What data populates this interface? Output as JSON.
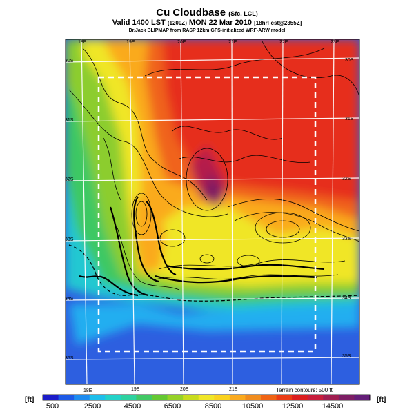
{
  "header": {
    "title": "Cu Cloudbase",
    "title_suffix": "(Sfc. LCL)",
    "valid": "Valid 1400 LST",
    "valid_code": "(1200Z)",
    "date": "MON 22 Mar 2010",
    "forecast": "[18hrFcst@2355Z]",
    "credit": "Dr.Jack BLIPMAP from RASP 12km GFS-initialized WRF-ARW model"
  },
  "map": {
    "lon_labels_top": [
      "18E",
      "19E",
      "20E",
      "21E",
      "22E",
      "23E"
    ],
    "lon_labels_bottom": [
      "18E",
      "19E",
      "20E",
      "21E"
    ],
    "lat_labels_left": [
      "30S",
      "31S",
      "32S",
      "33S",
      "34S",
      "35S"
    ],
    "lat_labels_right": [
      "30S",
      "31S",
      "32S",
      "33S",
      "34S",
      "35S"
    ],
    "terrain_note": "Terrain contours: 500 ft"
  },
  "legend": {
    "unit": "[ft]",
    "labels": [
      "500",
      "2500",
      "4500",
      "6500",
      "8500",
      "10500",
      "12500",
      "14500"
    ],
    "colors": [
      "#1c1cc8",
      "#1e5ae6",
      "#1e8cf0",
      "#1ebeeb",
      "#23d2c8",
      "#2dd2a0",
      "#41c864",
      "#64c832",
      "#96d228",
      "#c8dc1e",
      "#f0e628",
      "#fad21e",
      "#faaa1e",
      "#f08c1e",
      "#f06414",
      "#eb3c14",
      "#dc1e1e",
      "#c81e3c",
      "#a01e50",
      "#7d1e64",
      "#641e78"
    ]
  }
}
